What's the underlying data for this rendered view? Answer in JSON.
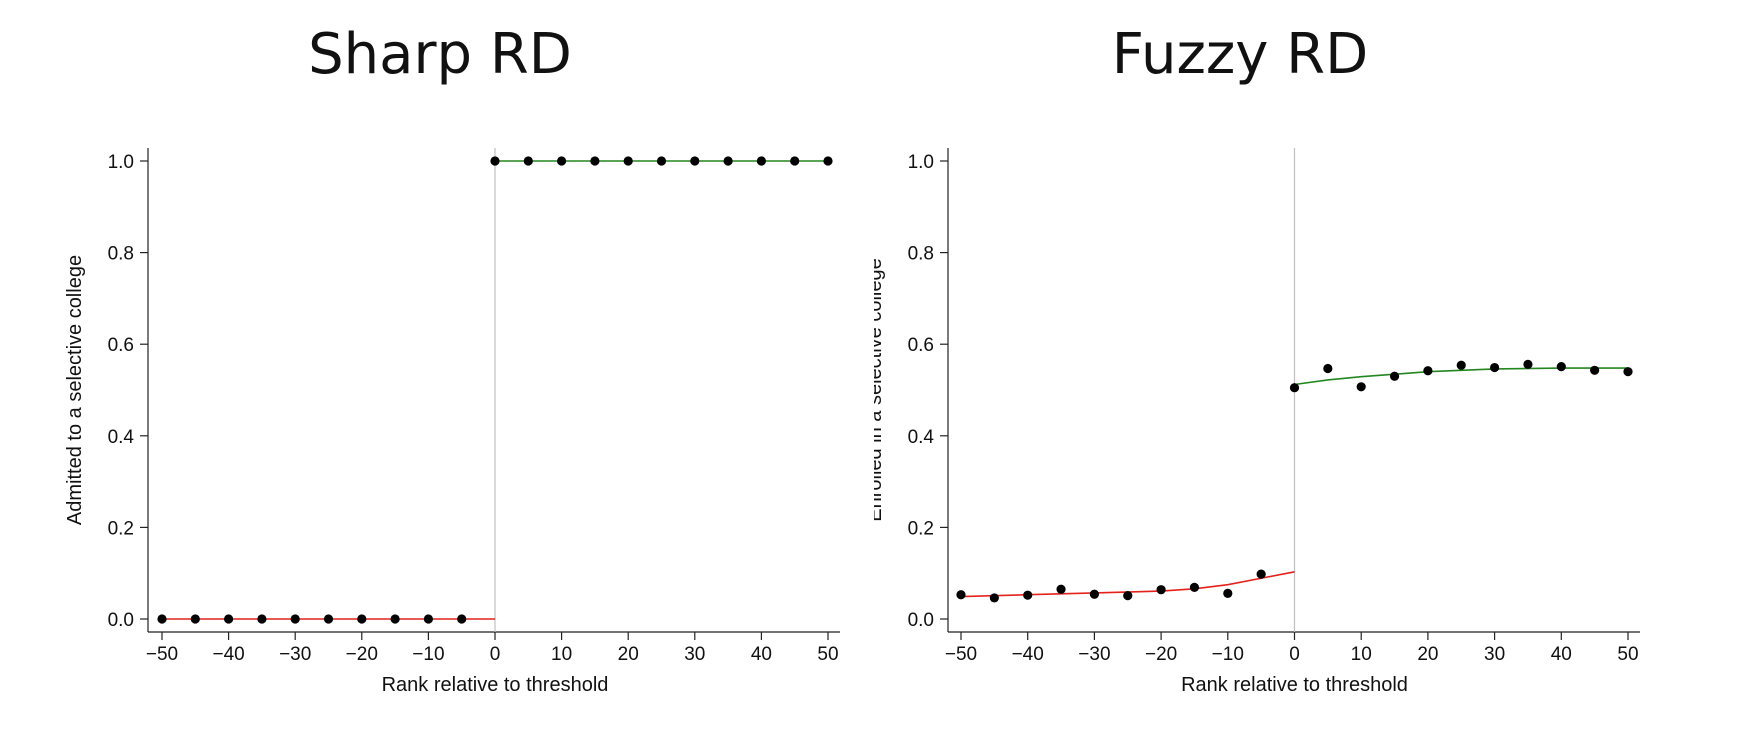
{
  "chart_data": [
    {
      "type": "scatter",
      "title": "Sharp RD",
      "xlabel": "Rank relative to threshold",
      "ylabel": "Admitted to a selective college",
      "xlim": [
        -50,
        50
      ],
      "ylim": [
        0,
        1
      ],
      "xticks": [
        "−50",
        "−40",
        "−30",
        "−20",
        "−10",
        "0",
        "10",
        "20",
        "30",
        "40",
        "50"
      ],
      "yticks": [
        "0.0",
        "0.2",
        "0.4",
        "0.6",
        "0.8",
        "1.0"
      ],
      "threshold": 0,
      "series": [
        {
          "x": [
            -50,
            -45,
            -40,
            -35,
            -30,
            -25,
            -20,
            -15,
            -10,
            -5,
            0,
            5,
            10,
            15,
            20,
            25,
            30,
            35,
            40,
            45,
            50
          ],
          "y": [
            0,
            0,
            0,
            0,
            0,
            0,
            0,
            0,
            0,
            0,
            1,
            1,
            1,
            1,
            1,
            1,
            1,
            1,
            1,
            1,
            1
          ]
        }
      ],
      "fits": [
        {
          "color": "#e3231b",
          "x": [
            -50,
            0
          ],
          "y": [
            0,
            0
          ]
        },
        {
          "color": "#23861f",
          "x": [
            0,
            50
          ],
          "y": [
            1,
            1
          ]
        }
      ],
      "grid": false
    },
    {
      "type": "scatter",
      "title": "Fuzzy RD",
      "xlabel": "Rank relative to threshold",
      "ylabel": "Enrolled in a selective college",
      "xlim": [
        -50,
        50
      ],
      "ylim": [
        0,
        1
      ],
      "xticks": [
        "−50",
        "−40",
        "−30",
        "−20",
        "−10",
        "0",
        "10",
        "20",
        "30",
        "40",
        "50"
      ],
      "yticks": [
        "0.0",
        "0.2",
        "0.4",
        "0.6",
        "0.8",
        "1.0"
      ],
      "threshold": 0,
      "series": [
        {
          "x": [
            -50,
            -45,
            -40,
            -35,
            -30,
            -25,
            -20,
            -15,
            -10,
            -5,
            0,
            5,
            10,
            15,
            20,
            25,
            30,
            35,
            40,
            45,
            50
          ],
          "y": [
            0.053,
            0.046,
            0.052,
            0.065,
            0.054,
            0.051,
            0.064,
            0.069,
            0.056,
            0.098,
            0.505,
            0.547,
            0.507,
            0.53,
            0.542,
            0.554,
            0.549,
            0.556,
            0.551,
            0.543,
            0.54
          ]
        }
      ],
      "fits": [
        {
          "color": "#e3231b",
          "x": [
            -50,
            -40,
            -30,
            -20,
            -15,
            -10,
            -5,
            0
          ],
          "y": [
            0.049,
            0.053,
            0.057,
            0.061,
            0.066,
            0.075,
            0.089,
            0.103
          ]
        },
        {
          "color": "#23861f",
          "x": [
            0,
            5,
            10,
            20,
            30,
            40,
            50
          ],
          "y": [
            0.512,
            0.522,
            0.529,
            0.54,
            0.546,
            0.548,
            0.548
          ]
        }
      ],
      "grid": false
    }
  ],
  "colors": {
    "background": "#ffffff",
    "threshold_line": "#c0c0c0",
    "points": "#000000"
  }
}
